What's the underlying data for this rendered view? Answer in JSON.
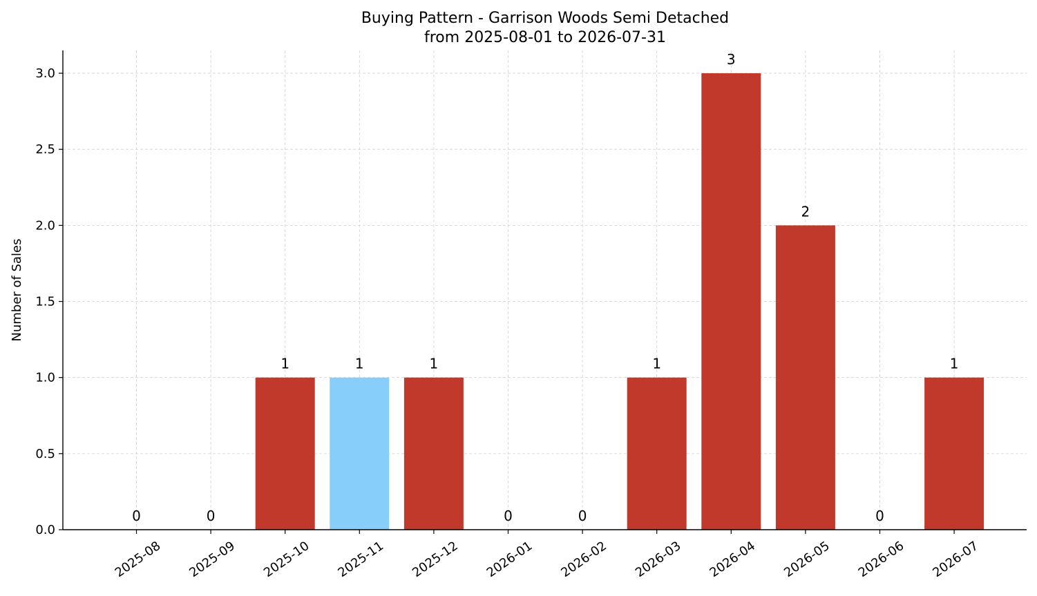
{
  "chart_data": {
    "type": "bar",
    "title_line1": "Buying Pattern - Garrison Woods Semi Detached",
    "title_line2": "from 2025-08-01 to 2026-07-31",
    "xlabel": "",
    "ylabel": "Number of Sales",
    "categories": [
      "2025-08",
      "2025-09",
      "2025-10",
      "2025-11",
      "2025-12",
      "2026-01",
      "2026-02",
      "2026-03",
      "2026-04",
      "2026-05",
      "2026-06",
      "2026-07"
    ],
    "values": [
      0,
      0,
      1,
      1,
      1,
      0,
      0,
      1,
      3,
      2,
      0,
      1
    ],
    "data_labels": [
      "0",
      "0",
      "1",
      "1",
      "1",
      "0",
      "0",
      "1",
      "3",
      "2",
      "0",
      "1"
    ],
    "highlight_index": 3,
    "ylim": [
      0,
      3.15
    ],
    "yticks": [
      0.0,
      0.5,
      1.0,
      1.5,
      2.0,
      2.5,
      3.0
    ],
    "ytick_labels": [
      "0.0",
      "0.5",
      "1.0",
      "1.5",
      "2.0",
      "2.5",
      "3.0"
    ],
    "grid": true,
    "colors": {
      "bar": "#c0392b",
      "highlight": "#87cefa"
    }
  }
}
